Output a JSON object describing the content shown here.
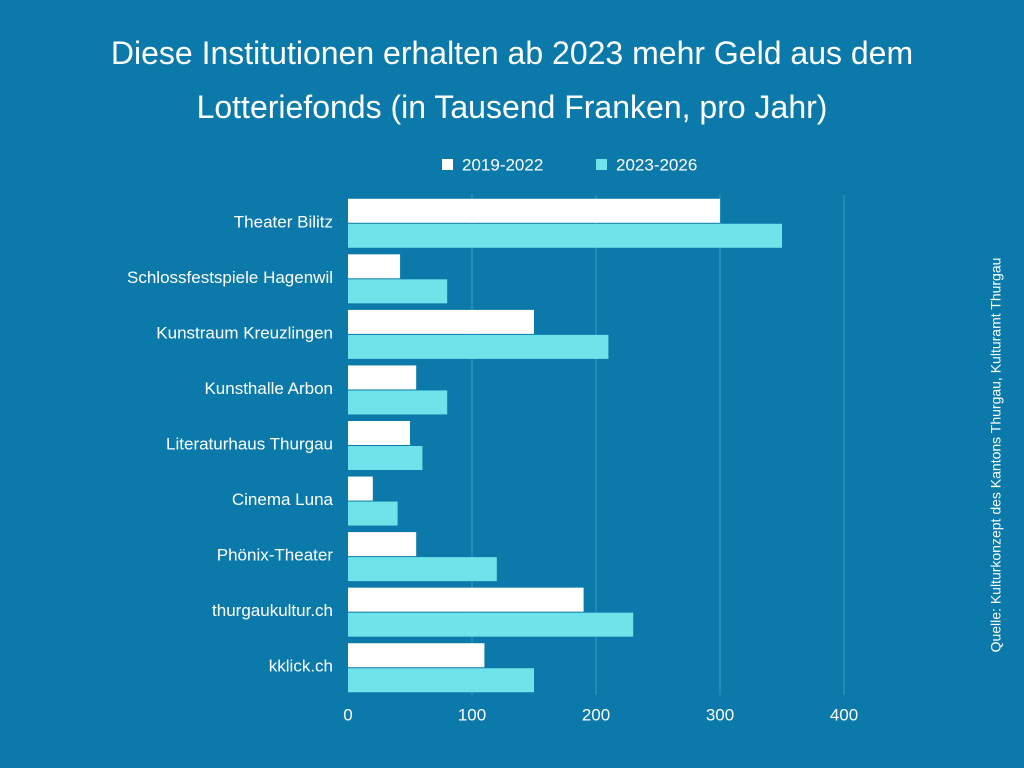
{
  "chart_data": {
    "type": "hbar",
    "title": "Diese Institutionen erhalten ab 2023 mehr Geld aus dem Lotteriefonds (in Tausend Franken, pro Jahr)",
    "source": "Quelle: Kulturkonzept des Kantons Thurgau, Kulturamt Thurgau",
    "categories": [
      "Theater Bilitz",
      "Schlossfestspiele Hagenwil",
      "Kunstraum Kreuzlingen",
      "Kunsthalle Arbon",
      "Literaturhaus Thurgau",
      "Cinema Luna",
      "Phönix-Theater",
      "thurgaukultur.ch",
      "kklick.ch"
    ],
    "series": [
      {
        "name": "2019-2022",
        "color": "#ffffff",
        "values": [
          300,
          42,
          150,
          55,
          50,
          20,
          55,
          190,
          110
        ]
      },
      {
        "name": "2023-2026",
        "color": "#6ee4ea",
        "values": [
          350,
          80,
          210,
          80,
          60,
          40,
          120,
          230,
          150
        ]
      }
    ],
    "xlim": [
      0,
      400
    ],
    "xticks": [
      0,
      100,
      200,
      300,
      400
    ],
    "grid": true
  }
}
